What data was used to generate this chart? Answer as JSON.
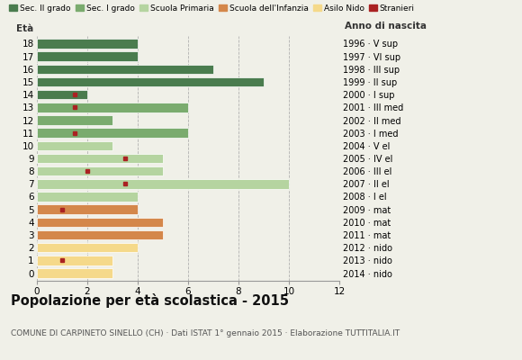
{
  "ages": [
    18,
    17,
    16,
    15,
    14,
    13,
    12,
    11,
    10,
    9,
    8,
    7,
    6,
    5,
    4,
    3,
    2,
    1,
    0
  ],
  "years": [
    "1996 · V sup",
    "1997 · VI sup",
    "1998 · III sup",
    "1999 · II sup",
    "2000 · I sup",
    "2001 · III med",
    "2002 · II med",
    "2003 · I med",
    "2004 · V el",
    "2005 · IV el",
    "2006 · III el",
    "2007 · II el",
    "2008 · I el",
    "2009 · mat",
    "2010 · mat",
    "2011 · mat",
    "2012 · nido",
    "2013 · nido",
    "2014 · nido"
  ],
  "bar_values": [
    4,
    4,
    7,
    9,
    2,
    6,
    3,
    6,
    3,
    5,
    5,
    10,
    4,
    4,
    5,
    5,
    4,
    3,
    3
  ],
  "stranieri_show": [
    false,
    false,
    false,
    false,
    true,
    true,
    false,
    true,
    false,
    true,
    true,
    true,
    false,
    true,
    false,
    false,
    false,
    true,
    false
  ],
  "stranieri_x": [
    0,
    0,
    0,
    0,
    1.5,
    1.5,
    0,
    1.5,
    0,
    3.5,
    2.0,
    3.5,
    0,
    1.0,
    0,
    0,
    0,
    1.0,
    0
  ],
  "bar_colors": [
    "#4a7c4e",
    "#4a7c4e",
    "#4a7c4e",
    "#4a7c4e",
    "#4a7c4e",
    "#7aab6e",
    "#7aab6e",
    "#7aab6e",
    "#b5d4a0",
    "#b5d4a0",
    "#b5d4a0",
    "#b5d4a0",
    "#b5d4a0",
    "#d4874a",
    "#d4874a",
    "#d4874a",
    "#f5d98a",
    "#f5d98a",
    "#f5d98a"
  ],
  "stranieri_color": "#aa2222",
  "title": "Popolazione per età scolastica - 2015",
  "subtitle": "COMUNE DI CARPINETO SINELLO (CH) · Dati ISTAT 1° gennaio 2015 · Elaborazione TUTTITALIA.IT",
  "label_eta": "Età",
  "label_anno": "Anno di nascita",
  "xlim": [
    0,
    12
  ],
  "xticks": [
    0,
    2,
    4,
    6,
    8,
    10,
    12
  ],
  "background_color": "#f0f0e8",
  "legend_labels": [
    "Sec. II grado",
    "Sec. I grado",
    "Scuola Primaria",
    "Scuola dell'Infanzia",
    "Asilo Nido",
    "Stranieri"
  ],
  "legend_colors": [
    "#4a7c4e",
    "#7aab6e",
    "#b5d4a0",
    "#d4874a",
    "#f5d98a",
    "#aa2222"
  ]
}
